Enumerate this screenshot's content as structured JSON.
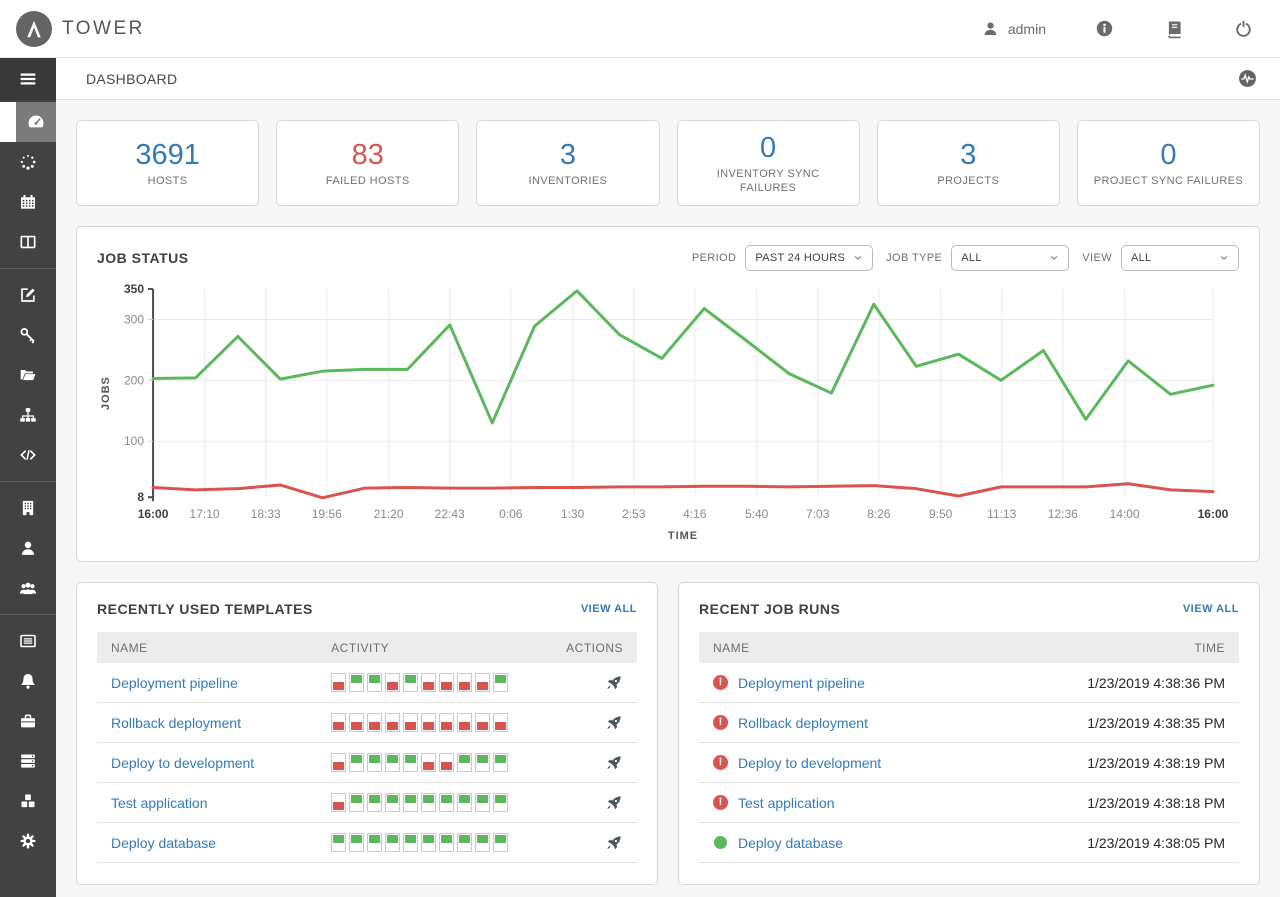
{
  "header": {
    "brand": "TOWER",
    "user_label": "admin",
    "icons": [
      "user-icon",
      "info-icon",
      "docs-icon",
      "power-icon"
    ]
  },
  "breadcrumb": {
    "title": "DASHBOARD",
    "icon": "activity-stream-icon"
  },
  "sidebar": {
    "menu_icon": "menu-icon",
    "items": [
      {
        "id": "dashboard",
        "icon": "dashboard-icon",
        "active": true
      },
      {
        "id": "jobs",
        "icon": "spinner-icon",
        "active": false
      },
      {
        "id": "schedules",
        "icon": "calendar-icon",
        "active": false
      },
      {
        "id": "portal-mode",
        "icon": "columns-icon",
        "active": false
      },
      {
        "divider": true
      },
      {
        "id": "templates",
        "icon": "pencil-square-icon",
        "active": false
      },
      {
        "id": "credentials",
        "icon": "key-icon",
        "active": false
      },
      {
        "id": "projects",
        "icon": "folder-icon",
        "active": false
      },
      {
        "id": "inventories",
        "icon": "sitemap-icon",
        "active": false
      },
      {
        "id": "inventory-scripts",
        "icon": "code-icon",
        "active": false
      },
      {
        "divider": true
      },
      {
        "id": "organizations",
        "icon": "building-icon",
        "active": false
      },
      {
        "id": "users",
        "icon": "user-icon",
        "active": false
      },
      {
        "id": "teams",
        "icon": "users-icon",
        "active": false
      },
      {
        "divider": true
      },
      {
        "id": "credential-types",
        "icon": "list-icon",
        "active": false
      },
      {
        "id": "notifications",
        "icon": "bell-icon",
        "active": false
      },
      {
        "id": "management-jobs",
        "icon": "toolbox-icon",
        "active": false
      },
      {
        "id": "instance-groups",
        "icon": "servers-icon",
        "active": false
      },
      {
        "id": "applications",
        "icon": "cubes-icon",
        "active": false
      },
      {
        "id": "settings",
        "icon": "gear-icon",
        "active": false
      }
    ]
  },
  "stats": [
    {
      "label": "HOSTS",
      "value": "3691",
      "color": "#337ab7"
    },
    {
      "label": "FAILED HOSTS",
      "value": "83",
      "color": "#d9534f"
    },
    {
      "label": "INVENTORIES",
      "value": "3",
      "color": "#337ab7"
    },
    {
      "label": "INVENTORY SYNC FAILURES",
      "value": "0",
      "color": "#337ab7"
    },
    {
      "label": "PROJECTS",
      "value": "3",
      "color": "#337ab7"
    },
    {
      "label": "PROJECT SYNC FAILURES",
      "value": "0",
      "color": "#337ab7"
    }
  ],
  "job_status_panel": {
    "title": "JOB STATUS",
    "filters": [
      {
        "id": "period",
        "label": "PERIOD",
        "value": "PAST 24 HOURS"
      },
      {
        "id": "job-type",
        "label": "JOB TYPE",
        "value": "ALL"
      },
      {
        "id": "view",
        "label": "VIEW",
        "value": "ALL"
      }
    ]
  },
  "chart_data": {
    "type": "line",
    "title": "JOB STATUS",
    "xlabel": "TIME",
    "ylabel": "JOBS",
    "ylim": [
      8,
      350
    ],
    "yticks": [
      8,
      100,
      200,
      300,
      350
    ],
    "grid": true,
    "legend": false,
    "xticks": [
      "16:00",
      "17:10",
      "18:33",
      "19:56",
      "21:20",
      "22:43",
      "0:06",
      "1:30",
      "2:53",
      "4:16",
      "5:40",
      "7:03",
      "8:26",
      "9:50",
      "11:13",
      "12:36",
      "14:00",
      "16:00"
    ],
    "xtick_minutes": [
      0,
      70,
      153,
      236,
      320,
      403,
      486,
      570,
      653,
      736,
      820,
      903,
      986,
      1070,
      1153,
      1236,
      1320,
      1440
    ],
    "series": [
      {
        "name": "successful",
        "color": "#5cb85c",
        "values": [
          203,
          204,
          272,
          202,
          215,
          218,
          218,
          291,
          130,
          289,
          347,
          275,
          236,
          318,
          265,
          211,
          179,
          325,
          223,
          243,
          200,
          249,
          136,
          232,
          177,
          192
        ]
      },
      {
        "name": "failed",
        "color": "#d9534f",
        "values": [
          24,
          20,
          22,
          28,
          7,
          23,
          24,
          23,
          23,
          24,
          24,
          25,
          25,
          26,
          26,
          25,
          26,
          27,
          22,
          10,
          25,
          25,
          25,
          30,
          20,
          17
        ]
      }
    ]
  },
  "templates_panel": {
    "title": "RECENTLY USED TEMPLATES",
    "view_all": "VIEW ALL",
    "columns": [
      "NAME",
      "ACTIVITY",
      "ACTIONS"
    ],
    "action_icon": "rocket-icon",
    "rows": [
      {
        "name": "Deployment pipeline",
        "activity": [
          "failed",
          "successful",
          "successful",
          "failed",
          "successful",
          "failed",
          "failed",
          "failed",
          "failed",
          "successful"
        ]
      },
      {
        "name": "Rollback deployment",
        "activity": [
          "failed",
          "failed",
          "failed",
          "failed",
          "failed",
          "failed",
          "failed",
          "failed",
          "failed",
          "failed"
        ]
      },
      {
        "name": "Deploy to development",
        "activity": [
          "failed",
          "successful",
          "successful",
          "successful",
          "successful",
          "failed",
          "failed",
          "successful",
          "successful",
          "successful"
        ]
      },
      {
        "name": "Test application",
        "activity": [
          "failed",
          "successful",
          "successful",
          "successful",
          "successful",
          "successful",
          "successful",
          "successful",
          "successful",
          "successful"
        ]
      },
      {
        "name": "Deploy database",
        "activity": [
          "successful",
          "successful",
          "successful",
          "successful",
          "successful",
          "successful",
          "successful",
          "successful",
          "successful",
          "successful"
        ]
      }
    ]
  },
  "job_runs_panel": {
    "title": "RECENT JOB RUNS",
    "view_all": "VIEW ALL",
    "columns": [
      "NAME",
      "TIME"
    ],
    "rows": [
      {
        "name": "Deployment pipeline",
        "status": "failed",
        "time": "1/23/2019 4:38:36 PM"
      },
      {
        "name": "Rollback deployment",
        "status": "failed",
        "time": "1/23/2019 4:38:35 PM"
      },
      {
        "name": "Deploy to development",
        "status": "failed",
        "time": "1/23/2019 4:38:19 PM"
      },
      {
        "name": "Test application",
        "status": "failed",
        "time": "1/23/2019 4:38:18 PM"
      },
      {
        "name": "Deploy database",
        "status": "successful",
        "time": "1/23/2019 4:38:05 PM"
      }
    ]
  },
  "colors": {
    "accent_blue": "#337ab7",
    "success_green": "#5cb85c",
    "fail_red": "#d9534f",
    "sidebar_dark": "#424242"
  }
}
